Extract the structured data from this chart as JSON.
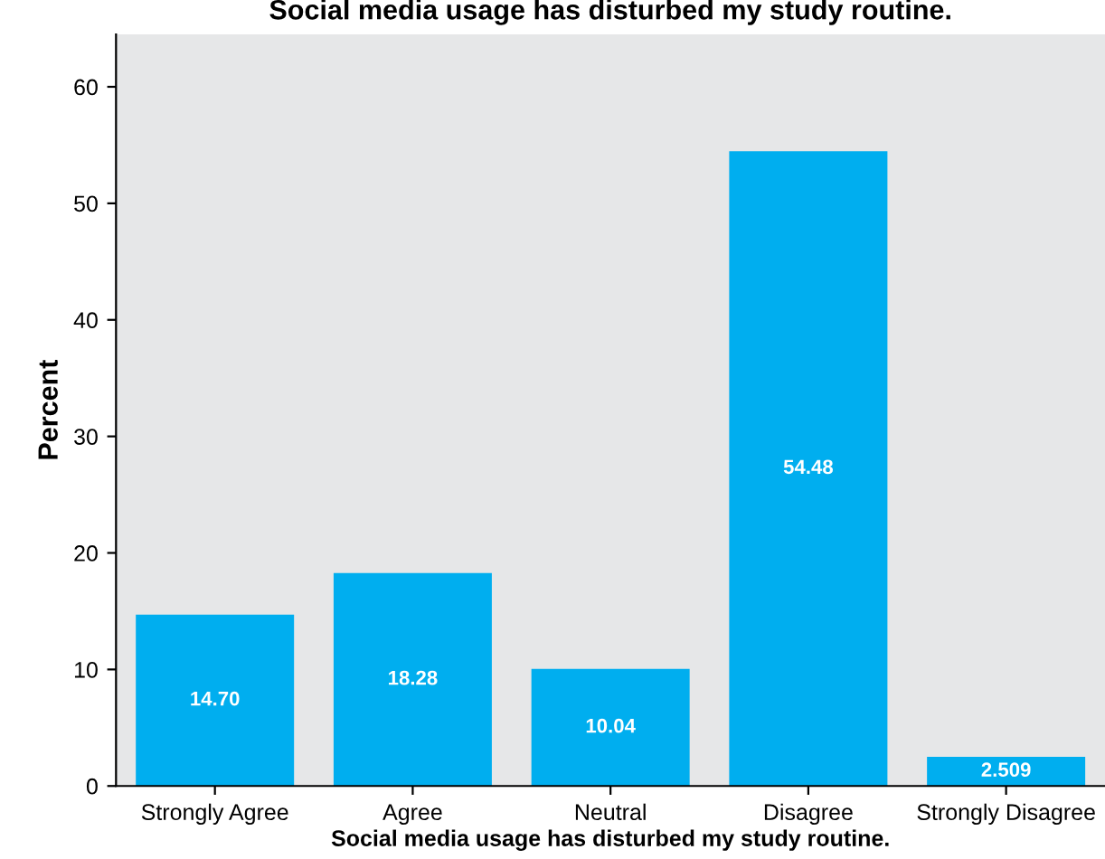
{
  "chart_data": {
    "type": "bar",
    "title": "Social media usage has disturbed my study routine.",
    "xlabel": "Social media usage has disturbed my study routine.",
    "ylabel": "Percent",
    "categories": [
      "Strongly Agree",
      "Agree",
      "Neutral",
      "Disagree",
      "Strongly Disagree"
    ],
    "values": [
      14.7,
      18.28,
      10.04,
      54.48,
      2.509
    ],
    "value_labels": [
      "14.70",
      "18.28",
      "10.04",
      "54.48",
      "2.509"
    ],
    "color": "#00aeef",
    "ylim": [
      0,
      64.5
    ],
    "yticks": [
      0,
      10,
      20,
      30,
      40,
      50,
      60
    ],
    "grid": false
  }
}
